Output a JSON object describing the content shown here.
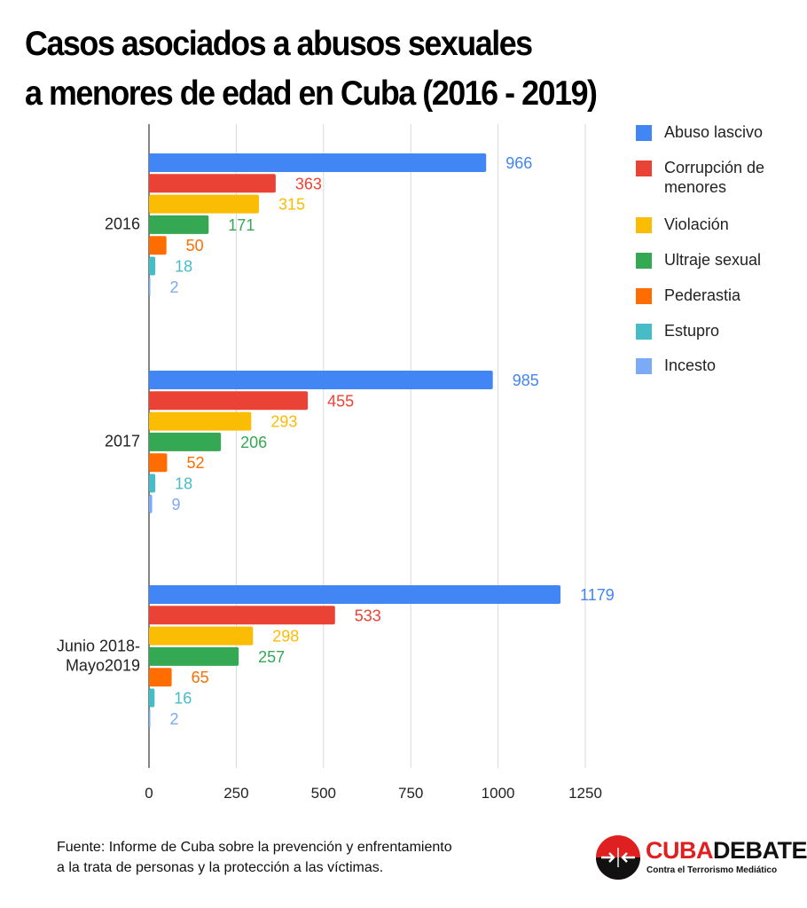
{
  "title_line1": "Casos asociados a abusos sexuales",
  "title_line2": "a menores de edad en Cuba (2016 - 2019)",
  "chart_data": {
    "type": "bar",
    "orientation": "horizontal",
    "categories": [
      "2016",
      "2017",
      "Junio 2018-\nMayo2019"
    ],
    "category_lines": [
      [
        "2016"
      ],
      [
        "2017"
      ],
      [
        "Junio 2018-",
        "Mayo2019"
      ]
    ],
    "series": [
      {
        "name": "Abuso lascivo",
        "color": "#4285f4",
        "values": [
          966,
          985,
          1179
        ]
      },
      {
        "name": "Corrupción de menores",
        "legend_lines": [
          "Corrupción de",
          "menores"
        ],
        "color": "#ea4335",
        "values": [
          363,
          455,
          533
        ]
      },
      {
        "name": "Violación",
        "color": "#fbbc04",
        "values": [
          315,
          293,
          298
        ]
      },
      {
        "name": "Ultraje sexual",
        "color": "#34a853",
        "values": [
          171,
          206,
          257
        ]
      },
      {
        "name": "Pederastia",
        "color": "#ff6d01",
        "values": [
          50,
          52,
          65
        ]
      },
      {
        "name": "Estupro",
        "color": "#46bdc6",
        "values": [
          18,
          18,
          16
        ]
      },
      {
        "name": "Incesto",
        "color": "#7baaf7",
        "values": [
          2,
          9,
          2
        ]
      }
    ],
    "x_ticks": [
      0,
      250,
      500,
      750,
      1000,
      1250
    ],
    "xlim": [
      0,
      1250
    ],
    "grid": true,
    "legend_position": "right",
    "data_labels": true
  },
  "footer": {
    "source_line1": "Fuente: Informe de Cuba sobre la prevención y enfrentamiento",
    "source_line2": "a la trata de personas y la protección a las víctimas."
  },
  "logo": {
    "name_part1": "CUBA",
    "name_part2": "DEBATE",
    "tagline": "Contra el Terrorismo Mediático",
    "icon": "cubadebate-logo-icon"
  }
}
